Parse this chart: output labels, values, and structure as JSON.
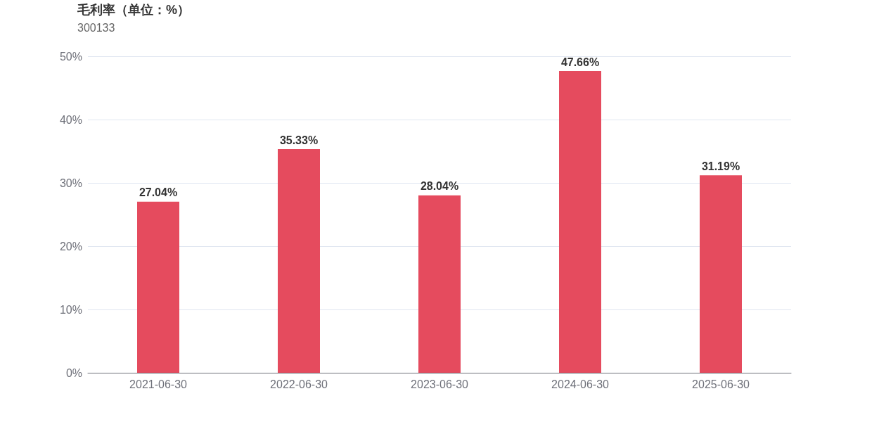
{
  "chart_data": {
    "type": "bar",
    "title": "毛利率（单位：%）",
    "subtitle": "300133",
    "categories": [
      "2021-06-30",
      "2022-06-30",
      "2023-06-30",
      "2024-06-30",
      "2025-06-30"
    ],
    "values": [
      27.04,
      35.33,
      28.04,
      47.66,
      31.19
    ],
    "color": "#e54b5e",
    "value_labels": [
      "27.04%",
      "35.33%",
      "28.04%",
      "47.66%",
      "31.19%"
    ],
    "ylim": [
      0,
      50
    ],
    "yticks": [
      {
        "value": 0,
        "label": "0%"
      },
      {
        "value": 10,
        "label": "10%"
      },
      {
        "value": 20,
        "label": "20%"
      },
      {
        "value": 30,
        "label": "30%"
      },
      {
        "value": 40,
        "label": "40%"
      },
      {
        "value": 50,
        "label": "50%"
      }
    ],
    "grid": "y"
  }
}
